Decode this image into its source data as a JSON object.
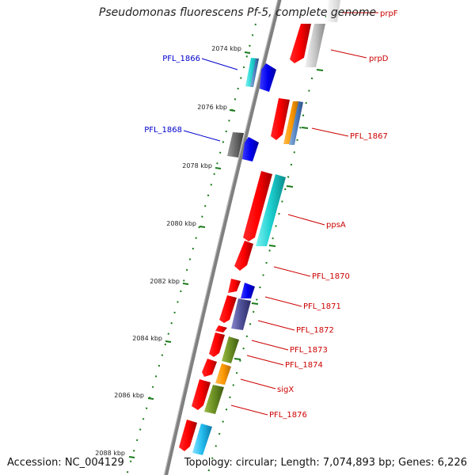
{
  "title": "Pseudomonas fluorescens Pf-5, complete genome",
  "accession": "Accession: NC_004129",
  "topology": "Topology: circular; Length: 7,074,893 bp; Genes: 6,226",
  "colors": {
    "forward_label": "#0000cc",
    "reverse_label": "#cc0000",
    "ticks": "#1a7a1a",
    "backbone": "#808080"
  },
  "scale_labels": [
    "2074 kbp",
    "2076 kbp",
    "2078 kbp",
    "2080 kbp",
    "2082 kbp",
    "2084 kbp",
    "2086 kbp",
    "2088 kbp"
  ],
  "forward_gene_labels": [
    "PFL_1866",
    "PFL_1868"
  ],
  "reverse_gene_labels": [
    "prpF",
    "prpD",
    "PFL_1867",
    "ppsA",
    "PFL_1870",
    "PFL_1871",
    "PFL_1872",
    "PFL_1873",
    "PFL_1874",
    "sigX",
    "PFL_1876"
  ]
}
